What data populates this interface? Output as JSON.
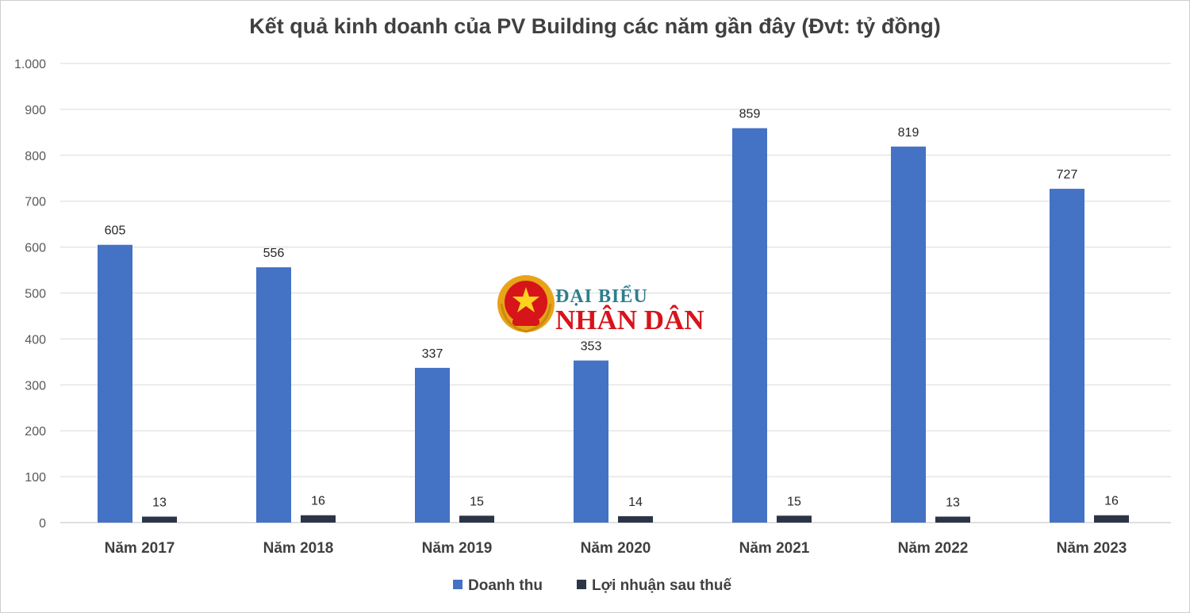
{
  "chart_data": {
    "type": "bar",
    "title": "Kết quả kinh doanh của PV Building các năm gần đây (Đvt: tỷ đồng)",
    "categories": [
      "Năm 2017",
      "Năm 2018",
      "Năm 2019",
      "Năm 2020",
      "Năm 2021",
      "Năm 2022",
      "Năm 2023"
    ],
    "series": [
      {
        "name": "Doanh thu",
        "color": "#4472c4",
        "values": [
          605,
          556,
          337,
          353,
          859,
          819,
          727
        ]
      },
      {
        "name": "Lợi nhuận sau thuế",
        "color": "#2b3547",
        "values": [
          13,
          16,
          15,
          14,
          15,
          13,
          16
        ]
      }
    ],
    "ylim": [
      0,
      1000
    ],
    "yticks": [
      0,
      100,
      200,
      300,
      400,
      500,
      600,
      700,
      800,
      900,
      1000
    ],
    "ytick_labels": [
      "0",
      "100",
      "200",
      "300",
      "400",
      "500",
      "600",
      "700",
      "800",
      "900",
      "1.000"
    ],
    "grid": true,
    "legend_position": "bottom-center",
    "xlabel": "",
    "ylabel": ""
  },
  "watermark": {
    "line1": "ĐẠI BIỂU",
    "line2": "NHÂN DÂN",
    "emblem": "vietnam-emblem-icon"
  }
}
